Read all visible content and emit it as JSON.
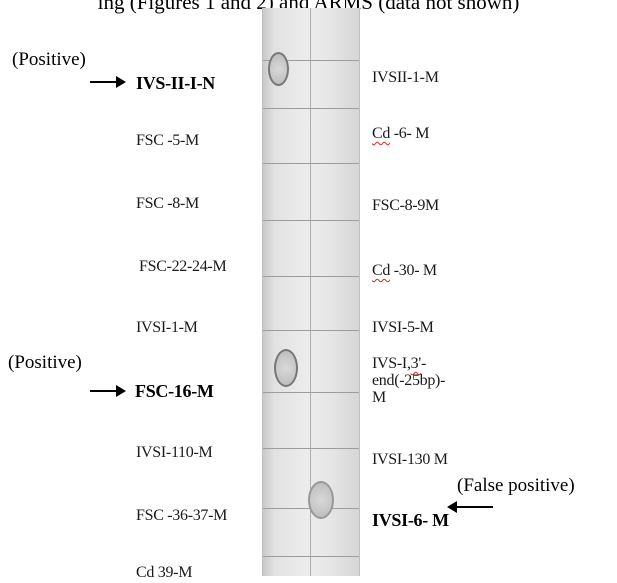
{
  "caption": "ing (Figures 1 and 2) and ARMS (data not shown)",
  "left_labels": [
    "IVS-II-I-N",
    "FSC -5-M",
    "FSC -8-M",
    "FSC-22-24-M",
    "IVSI-1-M",
    "FSC-16-M",
    "IVSI-110-M",
    "FSC -36-37-M",
    "Cd 39-M"
  ],
  "right_labels": [
    "IVSII-1-M",
    "Cd -6- M",
    "FSC-8-9M",
    "Cd -30- M",
    "IVSI-5-M",
    "IVS-I,3'-end(-25bp)-M",
    "IVSI-130 M",
    "IVSI-6- M"
  ],
  "annotations": {
    "positive_top": "(Positive)",
    "positive_mid": "(Positive)",
    "false_positive": "(False positive)"
  }
}
